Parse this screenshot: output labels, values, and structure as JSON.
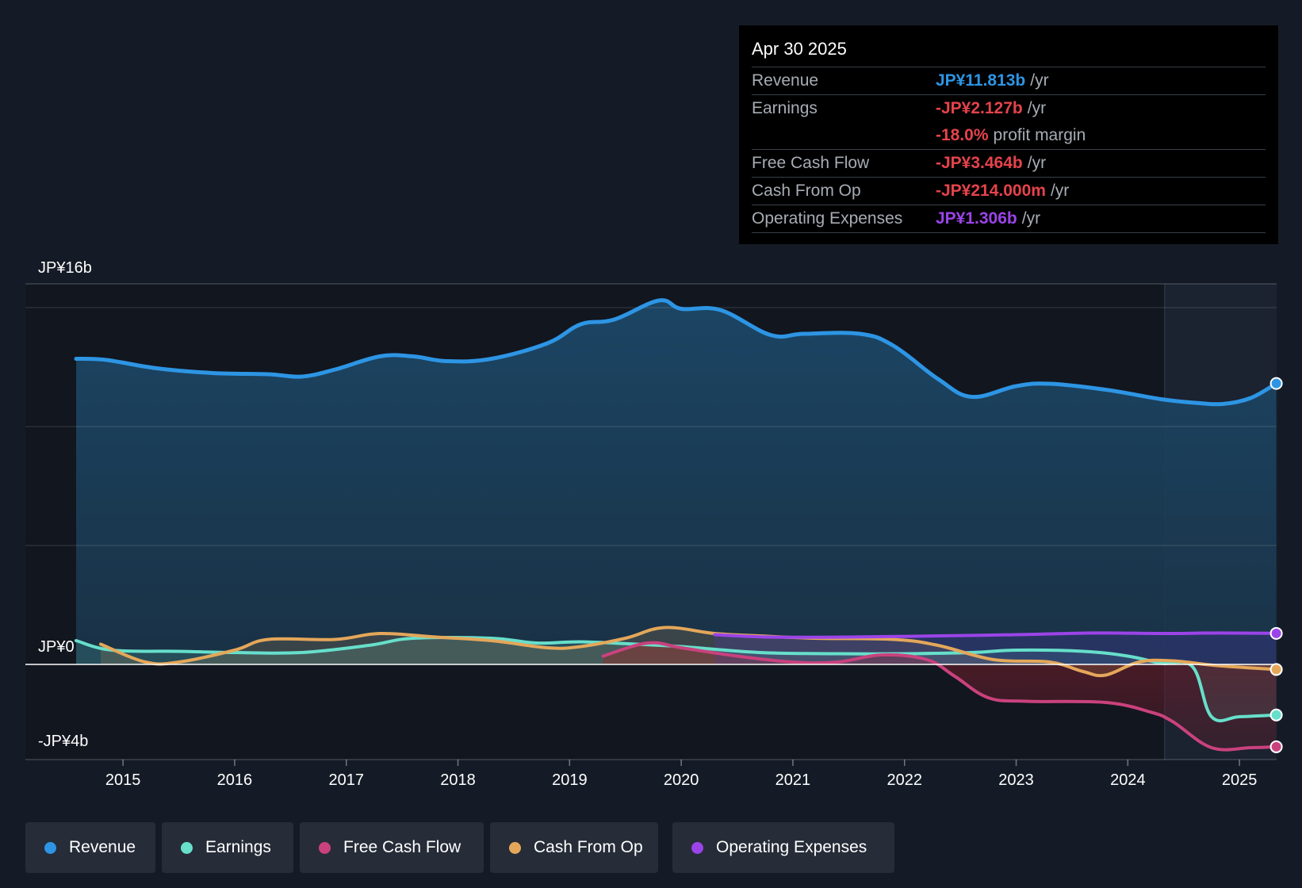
{
  "chart_data": {
    "type": "line",
    "title": "",
    "x_unit": "year",
    "y_unit": "JP¥ billions",
    "ylim": [
      -4,
      16
    ],
    "xlim": [
      2014.0,
      2025.35
    ],
    "y_axis_labels": [
      {
        "value": 16,
        "text": "JP¥16b"
      },
      {
        "value": 0,
        "text": "JP¥0"
      },
      {
        "value": -4,
        "text": "-JP¥4b"
      }
    ],
    "x_ticks": [
      {
        "value": 2015,
        "label": "2015"
      },
      {
        "value": 2016,
        "label": "2016"
      },
      {
        "value": 2017,
        "label": "2017"
      },
      {
        "value": 2018,
        "label": "2018"
      },
      {
        "value": 2019,
        "label": "2019"
      },
      {
        "value": 2020,
        "label": "2020"
      },
      {
        "value": 2021,
        "label": "2021"
      },
      {
        "value": 2022,
        "label": "2022"
      },
      {
        "value": 2023,
        "label": "2023"
      },
      {
        "value": 2024,
        "label": "2024"
      },
      {
        "value": 2025,
        "label": "2025"
      }
    ],
    "gridlines": [
      15,
      10,
      5
    ],
    "forecast_start": 2024.33,
    "series": [
      {
        "name": "Revenue",
        "color": "#2d95e4",
        "points": [
          [
            2014.58,
            12.85
          ],
          [
            2014.85,
            12.8
          ],
          [
            2015.3,
            12.45
          ],
          [
            2015.8,
            12.25
          ],
          [
            2016.3,
            12.2
          ],
          [
            2016.6,
            12.1
          ],
          [
            2016.9,
            12.4
          ],
          [
            2017.3,
            12.95
          ],
          [
            2017.6,
            12.95
          ],
          [
            2017.9,
            12.75
          ],
          [
            2018.3,
            12.85
          ],
          [
            2018.8,
            13.5
          ],
          [
            2019.1,
            14.3
          ],
          [
            2019.4,
            14.5
          ],
          [
            2019.8,
            15.3
          ],
          [
            2020.0,
            14.95
          ],
          [
            2020.35,
            14.9
          ],
          [
            2020.8,
            13.85
          ],
          [
            2021.1,
            13.9
          ],
          [
            2021.6,
            13.9
          ],
          [
            2021.9,
            13.4
          ],
          [
            2022.3,
            12.0
          ],
          [
            2022.6,
            11.25
          ],
          [
            2023.0,
            11.7
          ],
          [
            2023.3,
            11.8
          ],
          [
            2023.8,
            11.55
          ],
          [
            2024.3,
            11.15
          ],
          [
            2024.6,
            11.0
          ],
          [
            2024.85,
            10.95
          ],
          [
            2025.1,
            11.2
          ],
          [
            2025.33,
            11.813
          ]
        ]
      },
      {
        "name": "Earnings",
        "color": "#67dfcb",
        "points": [
          [
            2014.58,
            1.0
          ],
          [
            2014.9,
            0.6
          ],
          [
            2015.5,
            0.55
          ],
          [
            2016.0,
            0.5
          ],
          [
            2016.6,
            0.5
          ],
          [
            2017.2,
            0.8
          ],
          [
            2017.6,
            1.1
          ],
          [
            2018.3,
            1.1
          ],
          [
            2018.7,
            0.9
          ],
          [
            2019.1,
            0.95
          ],
          [
            2019.6,
            0.85
          ],
          [
            2020.0,
            0.75
          ],
          [
            2020.7,
            0.5
          ],
          [
            2021.4,
            0.45
          ],
          [
            2022.0,
            0.45
          ],
          [
            2022.6,
            0.5
          ],
          [
            2023.0,
            0.6
          ],
          [
            2023.6,
            0.55
          ],
          [
            2024.0,
            0.35
          ],
          [
            2024.3,
            0.05
          ],
          [
            2024.58,
            -0.1
          ],
          [
            2024.75,
            -2.2
          ],
          [
            2025.0,
            -2.2
          ],
          [
            2025.33,
            -2.127
          ]
        ]
      },
      {
        "name": "Free Cash Flow",
        "color": "#c9427d",
        "points": [
          [
            2019.3,
            0.35
          ],
          [
            2019.7,
            0.9
          ],
          [
            2020.0,
            0.7
          ],
          [
            2020.5,
            0.35
          ],
          [
            2021.0,
            0.1
          ],
          [
            2021.4,
            0.1
          ],
          [
            2021.8,
            0.4
          ],
          [
            2022.2,
            0.2
          ],
          [
            2022.45,
            -0.5
          ],
          [
            2022.75,
            -1.4
          ],
          [
            2023.1,
            -1.55
          ],
          [
            2023.8,
            -1.6
          ],
          [
            2024.2,
            -2.0
          ],
          [
            2024.4,
            -2.4
          ],
          [
            2024.75,
            -3.5
          ],
          [
            2025.1,
            -3.5
          ],
          [
            2025.33,
            -3.464
          ]
        ]
      },
      {
        "name": "Cash From Op",
        "color": "#e4a75a",
        "points": [
          [
            2014.8,
            0.85
          ],
          [
            2015.2,
            0.1
          ],
          [
            2015.5,
            0.1
          ],
          [
            2016.0,
            0.6
          ],
          [
            2016.3,
            1.05
          ],
          [
            2016.9,
            1.05
          ],
          [
            2017.3,
            1.3
          ],
          [
            2017.8,
            1.15
          ],
          [
            2018.3,
            1.0
          ],
          [
            2018.8,
            0.7
          ],
          [
            2019.1,
            0.75
          ],
          [
            2019.5,
            1.1
          ],
          [
            2019.85,
            1.55
          ],
          [
            2020.3,
            1.3
          ],
          [
            2020.7,
            1.2
          ],
          [
            2021.2,
            1.1
          ],
          [
            2021.9,
            1.05
          ],
          [
            2022.3,
            0.8
          ],
          [
            2022.8,
            0.2
          ],
          [
            2023.3,
            0.1
          ],
          [
            2023.6,
            -0.3
          ],
          [
            2023.8,
            -0.45
          ],
          [
            2024.1,
            0.1
          ],
          [
            2024.4,
            0.15
          ],
          [
            2024.8,
            -0.05
          ],
          [
            2025.33,
            -0.214
          ]
        ]
      },
      {
        "name": "Operating Expenses",
        "color": "#9b44e8",
        "points": [
          [
            2020.3,
            1.25
          ],
          [
            2020.8,
            1.15
          ],
          [
            2021.5,
            1.15
          ],
          [
            2022.3,
            1.2
          ],
          [
            2023.0,
            1.25
          ],
          [
            2023.7,
            1.32
          ],
          [
            2024.3,
            1.3
          ],
          [
            2024.8,
            1.32
          ],
          [
            2025.33,
            1.306
          ]
        ]
      }
    ],
    "tooltip": {
      "date": "Apr 30 2025",
      "rows": [
        {
          "label": "Revenue",
          "value": "JP¥11.813b",
          "unit": "/yr",
          "color": "#2d95e4"
        },
        {
          "label": "Earnings",
          "value": "-JP¥2.127b",
          "unit": "/yr",
          "color": "#e5434b"
        },
        {
          "label": "",
          "value": "-18.0%",
          "unit": "profit margin",
          "color": "#e5434b"
        },
        {
          "label": "Free Cash Flow",
          "value": "-JP¥3.464b",
          "unit": "/yr",
          "color": "#e5434b"
        },
        {
          "label": "Cash From Op",
          "value": "-JP¥214.000m",
          "unit": "/yr",
          "color": "#e5434b"
        },
        {
          "label": "Operating Expenses",
          "value": "JP¥1.306b",
          "unit": "/yr",
          "color": "#9b44e8"
        }
      ]
    },
    "legend": [
      {
        "label": "Revenue",
        "color": "#2d95e4"
      },
      {
        "label": "Earnings",
        "color": "#67dfcb"
      },
      {
        "label": "Free Cash Flow",
        "color": "#c9427d"
      },
      {
        "label": "Cash From Op",
        "color": "#e4a75a"
      },
      {
        "label": "Operating Expenses",
        "color": "#9b44e8"
      }
    ]
  }
}
